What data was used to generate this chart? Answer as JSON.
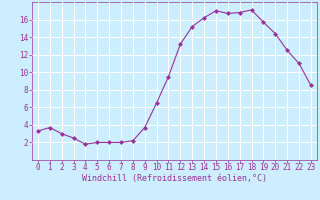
{
  "x": [
    0,
    1,
    2,
    3,
    4,
    5,
    6,
    7,
    8,
    9,
    10,
    11,
    12,
    13,
    14,
    15,
    16,
    17,
    18,
    19,
    20,
    21,
    22,
    23
  ],
  "y": [
    3.3,
    3.7,
    3.0,
    2.5,
    1.8,
    2.0,
    2.0,
    2.0,
    2.2,
    3.7,
    6.5,
    9.5,
    13.2,
    15.2,
    16.2,
    17.0,
    16.7,
    16.8,
    17.1,
    15.7,
    14.4,
    12.5,
    11.0,
    8.5
  ],
  "line_color": "#993399",
  "marker": "D",
  "marker_size": 2.0,
  "bg_color": "#cceeff",
  "grid_color": "#ffffff",
  "xlabel": "Windchill (Refroidissement éolien,°C)",
  "xlabel_color": "#993399",
  "tick_color": "#993399",
  "label_fontsize": 5.5,
  "xlabel_fontsize": 6.0,
  "ylim": [
    0,
    18
  ],
  "xlim": [
    -0.5,
    23.5
  ],
  "yticks": [
    2,
    4,
    6,
    8,
    10,
    12,
    14,
    16
  ],
  "xticks": [
    0,
    1,
    2,
    3,
    4,
    5,
    6,
    7,
    8,
    9,
    10,
    11,
    12,
    13,
    14,
    15,
    16,
    17,
    18,
    19,
    20,
    21,
    22,
    23
  ]
}
